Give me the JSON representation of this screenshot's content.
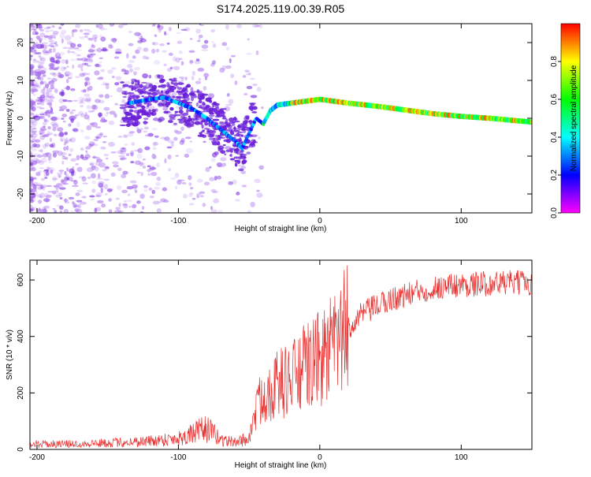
{
  "title": "S174.2025.119.00.39.R05",
  "chart_data": [
    {
      "type": "heatmap",
      "xlabel": "Height of straight line (km)",
      "ylabel": "Frequency (Hz)",
      "xlim": [
        -205,
        150
      ],
      "ylim": [
        -25,
        25
      ],
      "x_ticks": [
        -200,
        -100,
        0,
        100
      ],
      "y_ticks": [
        -20,
        -10,
        0,
        10,
        20
      ],
      "colorbar": {
        "label": "Normalized spectral amplitude",
        "range": [
          0.0,
          1.0
        ],
        "ticks": [
          "0.0",
          "0.2",
          "0.4",
          "0.6",
          "0.8"
        ],
        "colors": [
          "#ff00ff",
          "#0000ff",
          "#00ffff",
          "#00ff00",
          "#ffff00",
          "#ff0000"
        ]
      },
      "ridge": {
        "x": [
          -135,
          -120,
          -110,
          -100,
          -90,
          -80,
          -70,
          -60,
          -55,
          -50,
          -45,
          -40,
          -35,
          -30,
          -20,
          -10,
          0,
          10,
          20,
          40,
          60,
          80,
          100,
          120,
          150
        ],
        "y": [
          4,
          5,
          5.5,
          4,
          2.5,
          0,
          -3,
          -6,
          -8,
          -4,
          0,
          -1.5,
          2,
          3.5,
          4,
          4.5,
          5,
          4.5,
          4,
          3.2,
          2.2,
          1.2,
          0.5,
          0,
          -1
        ]
      }
    },
    {
      "type": "line",
      "xlabel": "Height of straight line (km)",
      "ylabel": "SNR (10 * v/v)",
      "xlim": [
        -205,
        150
      ],
      "ylim": [
        0,
        670
      ],
      "x_ticks": [
        -200,
        -100,
        0,
        100
      ],
      "y_ticks": [
        0,
        200,
        400,
        600
      ],
      "color": "#e8302f",
      "envelope": {
        "x": [
          -205,
          -170,
          -140,
          -120,
          -100,
          -90,
          -80,
          -70,
          -60,
          -50,
          -45,
          -40,
          -30,
          -20,
          -10,
          0,
          10,
          20,
          30,
          50,
          70,
          90,
          110,
          130,
          150
        ],
        "y": [
          18,
          20,
          25,
          30,
          40,
          55,
          75,
          35,
          25,
          40,
          140,
          200,
          230,
          250,
          290,
          320,
          360,
          430,
          480,
          530,
          560,
          580,
          585,
          590,
          590
        ]
      }
    }
  ]
}
